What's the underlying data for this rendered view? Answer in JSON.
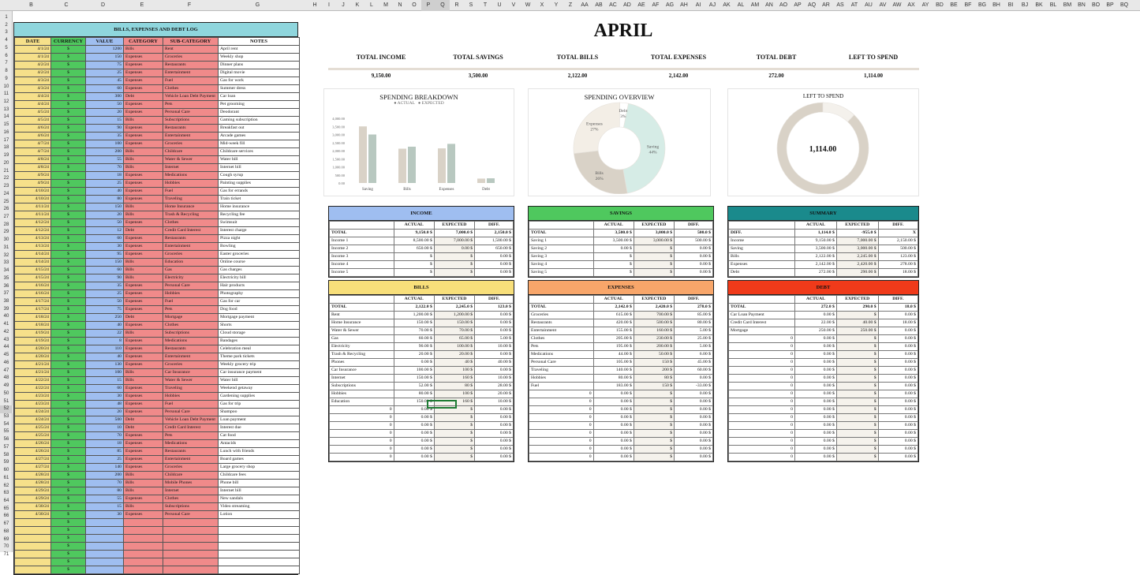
{
  "colheads": [
    "B",
    "C",
    "D",
    "E",
    "F",
    "G",
    "H",
    "I",
    "J",
    "K",
    "L",
    "M",
    "N",
    "O",
    "P",
    "Q",
    "R",
    "S",
    "T",
    "U",
    "V",
    "W",
    "X",
    "Y",
    "Z",
    "AA",
    "AB",
    "AC",
    "AD",
    "AE",
    "AF",
    "AG",
    "AH",
    "AI",
    "AJ",
    "AK",
    "AL",
    "AM",
    "AN",
    "AO",
    "AP",
    "AQ",
    "AR",
    "AS",
    "AT",
    "AU",
    "AV",
    "AW",
    "AX",
    "AY",
    "BD",
    "BE",
    "BF",
    "BG",
    "BH",
    "BI",
    "BJ",
    "BK",
    "BL",
    "BM",
    "BN",
    "BO",
    "BP",
    "BQ",
    "BR",
    "BS",
    "BT",
    "BU"
  ],
  "rowheads": [
    "1",
    "2",
    "3",
    "4",
    "5",
    "6",
    "7",
    "8",
    "9",
    "10",
    "11",
    "12",
    "13",
    "14",
    "15",
    "16",
    "17",
    "18",
    "19",
    "20",
    "21",
    "22",
    "23",
    "24",
    "25",
    "26",
    "27",
    "28",
    "29",
    "30",
    "31",
    "32",
    "33",
    "34",
    "35",
    "36",
    "37",
    "38",
    "39",
    "40",
    "41",
    "42",
    "43",
    "44",
    "45",
    "46",
    "47",
    "48",
    "49",
    "50",
    "51",
    "52",
    "53",
    "54",
    "55",
    "56",
    "57",
    "58",
    "59",
    "60",
    "61",
    "62",
    "63",
    "64",
    "65",
    "66",
    "67",
    "68",
    "69",
    "70",
    "71"
  ],
  "log": {
    "title": "BILLS, EXPENSES AND DEBT LOG",
    "headers": [
      "DATE",
      "CURRENCY",
      "VALUE",
      "CATEGORY",
      "SUB-CATEGORY",
      "NOTES"
    ],
    "rows": [
      [
        "4/1/24",
        "$",
        "1200",
        "Bills",
        "Rent",
        "April rent"
      ],
      [
        "4/1/24",
        "$",
        "150",
        "Expenses",
        "Groceries",
        "Weekly shop"
      ],
      [
        "4/2/24",
        "$",
        "75",
        "Expenses",
        "Restaurants",
        "Dinner plans"
      ],
      [
        "4/2/24",
        "$",
        "25",
        "Expenses",
        "Entertainment",
        "Digital movie"
      ],
      [
        "4/3/24",
        "$",
        "45",
        "Expenses",
        "Fuel",
        "Gas for work"
      ],
      [
        "4/3/24",
        "$",
        "60",
        "Expenses",
        "Clothes",
        "Summer dress"
      ],
      [
        "4/4/24",
        "$",
        "300",
        "Debt",
        "Vehicle Loan Debt Payment",
        "Car loan"
      ],
      [
        "4/4/24",
        "$",
        "50",
        "Expenses",
        "Pets",
        "Pet grooming"
      ],
      [
        "4/5/24",
        "$",
        "20",
        "Expenses",
        "Personal Care",
        "Deodorant"
      ],
      [
        "4/5/24",
        "$",
        "15",
        "Bills",
        "Subscriptions",
        "Gaming subscription"
      ],
      [
        "4/6/24",
        "$",
        "90",
        "Expenses",
        "Restaurants",
        "Breakfast out"
      ],
      [
        "4/6/24",
        "$",
        "35",
        "Expenses",
        "Entertainment",
        "Arcade games"
      ],
      [
        "4/7/24",
        "$",
        "100",
        "Expenses",
        "Groceries",
        "Mid-week fill"
      ],
      [
        "4/7/24",
        "$",
        "200",
        "Bills",
        "Childcare",
        "Childcare services"
      ],
      [
        "4/8/24",
        "$",
        "55",
        "Bills",
        "Water & Sewer",
        "Water bill"
      ],
      [
        "4/8/24",
        "$",
        "70",
        "Bills",
        "Internet",
        "Internet bill"
      ],
      [
        "4/9/24",
        "$",
        "18",
        "Expenses",
        "Medications",
        "Cough syrup"
      ],
      [
        "4/9/24",
        "$",
        "25",
        "Expenses",
        "Hobbies",
        "Painting supplies"
      ],
      [
        "4/10/24",
        "$",
        "40",
        "Expenses",
        "Fuel",
        "Gas for errands"
      ],
      [
        "4/10/24",
        "$",
        "80",
        "Expenses",
        "Traveling",
        "Train ticket"
      ],
      [
        "4/11/24",
        "$",
        "150",
        "Bills",
        "Home Insurance",
        "Home insurance"
      ],
      [
        "4/11/24",
        "$",
        "20",
        "Bills",
        "Trash & Recycling",
        "Recycling fee"
      ],
      [
        "4/12/24",
        "$",
        "50",
        "Expenses",
        "Clothes",
        "Swimsuit"
      ],
      [
        "4/12/24",
        "$",
        "12",
        "Debt",
        "Credit Card Interest",
        "Interest charge"
      ],
      [
        "4/13/24",
        "$",
        "60",
        "Expenses",
        "Restaurants",
        "Pizza night"
      ],
      [
        "4/13/24",
        "$",
        "30",
        "Expenses",
        "Entertainment",
        "Bowling"
      ],
      [
        "4/14/24",
        "$",
        "95",
        "Expenses",
        "Groceries",
        "Easter groceries"
      ],
      [
        "4/14/24",
        "$",
        "150",
        "Bills",
        "Education",
        "Online course"
      ],
      [
        "4/15/24",
        "$",
        "60",
        "Bills",
        "Gas",
        "Gas charges"
      ],
      [
        "4/15/24",
        "$",
        "90",
        "Bills",
        "Electricity",
        "Electricity bill"
      ],
      [
        "4/16/24",
        "$",
        "35",
        "Expenses",
        "Personal Care",
        "Hair products"
      ],
      [
        "4/16/24",
        "$",
        "25",
        "Expenses",
        "Hobbies",
        "Photography"
      ],
      [
        "4/17/24",
        "$",
        "50",
        "Expenses",
        "Fuel",
        "Gas for car"
      ],
      [
        "4/17/24",
        "$",
        "75",
        "Expenses",
        "Pets",
        "Dog food"
      ],
      [
        "4/18/24",
        "$",
        "250",
        "Debt",
        "Mortgage",
        "Mortgage payment"
      ],
      [
        "4/18/24",
        "$",
        "40",
        "Expenses",
        "Clothes",
        "Shorts"
      ],
      [
        "4/19/24",
        "$",
        "22",
        "Bills",
        "Subscriptions",
        "Cloud storage"
      ],
      [
        "4/19/24",
        "$",
        "8",
        "Expenses",
        "Medications",
        "Bandages"
      ],
      [
        "4/20/24",
        "$",
        "110",
        "Expenses",
        "Restaurants",
        "Celebration meal"
      ],
      [
        "4/20/24",
        "$",
        "40",
        "Expenses",
        "Entertainment",
        "Theme park tickets"
      ],
      [
        "4/21/24",
        "$",
        "130",
        "Expenses",
        "Groceries",
        "Weekly grocery trip"
      ],
      [
        "4/21/24",
        "$",
        "100",
        "Bills",
        "Car Insurance",
        "Car insurance payment"
      ],
      [
        "4/22/24",
        "$",
        "15",
        "Bills",
        "Water & Sewer",
        "Water bill"
      ],
      [
        "4/22/24",
        "$",
        "60",
        "Expenses",
        "Traveling",
        "Weekend getaway"
      ],
      [
        "4/23/24",
        "$",
        "30",
        "Expenses",
        "Hobbies",
        "Gardening supplies"
      ],
      [
        "4/23/24",
        "$",
        "48",
        "Expenses",
        "Fuel",
        "Gas for trip"
      ],
      [
        "4/24/24",
        "$",
        "20",
        "Expenses",
        "Personal Care",
        "Shampoo"
      ],
      [
        "4/24/24",
        "$",
        "500",
        "Debt",
        "Vehicle Loan Debt Payment",
        "Loan payment"
      ],
      [
        "4/25/24",
        "$",
        "10",
        "Debt",
        "Credit Card Interest",
        "Interest due"
      ],
      [
        "4/25/24",
        "$",
        "70",
        "Expenses",
        "Pets",
        "Cat food"
      ],
      [
        "4/26/24",
        "$",
        "18",
        "Expenses",
        "Medications",
        "Antacids"
      ],
      [
        "4/26/24",
        "$",
        "85",
        "Expenses",
        "Restaurants",
        "Lunch with friends"
      ],
      [
        "4/27/24",
        "$",
        "25",
        "Expenses",
        "Entertainment",
        "Board games"
      ],
      [
        "4/27/24",
        "$",
        "140",
        "Expenses",
        "Groceries",
        "Large grocery shop"
      ],
      [
        "4/28/24",
        "$",
        "200",
        "Bills",
        "Childcare",
        "Childcare fees"
      ],
      [
        "4/28/24",
        "$",
        "70",
        "Bills",
        "Mobile Phones",
        "Phone bill"
      ],
      [
        "4/29/24",
        "$",
        "80",
        "Bills",
        "Internet",
        "Internet bill"
      ],
      [
        "4/29/24",
        "$",
        "55",
        "Expenses",
        "Clothes",
        "New sandals"
      ],
      [
        "4/30/24",
        "$",
        "15",
        "Bills",
        "Subscriptions",
        "Video streaming"
      ],
      [
        "4/30/24",
        "$",
        "30",
        "Expenses",
        "Personal Care",
        "Lotion"
      ],
      [
        "",
        "$",
        "",
        "",
        "",
        ""
      ],
      [
        "",
        "$",
        "",
        "",
        "",
        ""
      ],
      [
        "",
        "$",
        "",
        "",
        "",
        ""
      ],
      [
        "",
        "$",
        "",
        "",
        "",
        ""
      ],
      [
        "",
        "$",
        "",
        "",
        "",
        ""
      ],
      [
        "",
        "$",
        "",
        "",
        "",
        ""
      ],
      [
        "",
        "$",
        "",
        "",
        "",
        ""
      ]
    ]
  },
  "month": "APRIL",
  "kpis": [
    {
      "label": "TOTAL INCOME",
      "value": "9,150.00"
    },
    {
      "label": "TOTAL SAVINGS",
      "value": "3,500.00"
    },
    {
      "label": "TOTAL BILLS",
      "value": "2,122.00"
    },
    {
      "label": "TOTAL EXPENSES",
      "value": "2,142.00"
    },
    {
      "label": "TOTAL DEBT",
      "value": "272.00"
    },
    {
      "label": "LEFT TO SPEND",
      "value": "1,114.00"
    }
  ],
  "chart_data": [
    {
      "type": "bar",
      "title": "SPENDING BREAKDOWN",
      "categories": [
        "Saving",
        "Bills",
        "Expenses",
        "Debt"
      ],
      "series": [
        {
          "name": "ACTUAL",
          "values": [
            3500,
            2122,
            2142,
            272
          ],
          "color": "#d9d2c7"
        },
        {
          "name": "EXPECTED",
          "values": [
            3000,
            2245,
            2420,
            290
          ],
          "color": "#b8c8c0"
        }
      ],
      "ylim": [
        0,
        4000
      ],
      "yticks": [
        "0.00",
        "500.00",
        "1,000.00",
        "1,500.00",
        "2,000.00",
        "2,500.00",
        "3,000.00",
        "3,500.00",
        "4,000.00"
      ],
      "legend": "top"
    },
    {
      "type": "pie",
      "title": "SPENDING OVERVIEW",
      "slices": [
        {
          "label": "Saving",
          "pct": "44%",
          "value": 44,
          "color": "#d6ece6"
        },
        {
          "label": "Bills",
          "pct": "26%",
          "value": 26,
          "color": "#d9d2c7"
        },
        {
          "label": "Expenses",
          "pct": "27%",
          "value": 27,
          "color": "#f3eee6"
        },
        {
          "label": "Debt",
          "pct": "3%",
          "value": 3,
          "color": "#ffffff"
        }
      ]
    },
    {
      "type": "pie",
      "title": "LEFT TO SPEND",
      "center": "1,114.00",
      "slices": [
        {
          "value": 88,
          "color": "#d9d2c7"
        },
        {
          "value": 12,
          "color": "#f4f1ec"
        }
      ]
    }
  ],
  "income": {
    "title": "INCOME",
    "color": "#9fbef0",
    "headers": [
      "",
      "ACTUAL",
      "EXPECTED",
      "DIFF."
    ],
    "total": [
      "TOTAL",
      "9,150.0 $",
      "7,000.0 $",
      "2,150.0 $"
    ],
    "rows": [
      [
        "Income 1",
        "8,500.00 $",
        "7,000.00 $",
        "1,500.00 $"
      ],
      [
        "Income 2",
        "650.00 $",
        "0.00 $",
        "650.00 $"
      ],
      [
        "Income 3",
        "$",
        "$",
        "0.00 $"
      ],
      [
        "Income 4",
        "$",
        "$",
        "0.00 $"
      ],
      [
        "Income 5",
        "$",
        "$",
        "0.00 $"
      ]
    ]
  },
  "savings": {
    "title": "SAVINGS",
    "color": "#4fc85e",
    "headers": [
      "",
      "ACTUAL",
      "EXPECTED",
      "DIFF."
    ],
    "total": [
      "TOTAL",
      "3,500.0 $",
      "3,000.0 $",
      "500.0 $"
    ],
    "rows": [
      [
        "Saving 1",
        "3,500.00 $",
        "3,000.00 $",
        "500.00 $"
      ],
      [
        "Saving 2",
        "0.00 $",
        "$",
        "0.00 $"
      ],
      [
        "Saving 3",
        "$",
        "$",
        "0.00 $"
      ],
      [
        "Saving 4",
        "$",
        "$",
        "0.00 $"
      ],
      [
        "Saving 5",
        "$",
        "$",
        "0.00 $"
      ]
    ]
  },
  "summary": {
    "title": "SUMMARY",
    "color": "#1a8a8c",
    "headers": [
      "",
      "ACTUAL",
      "EXPECTED",
      "DIFF."
    ],
    "total": [
      "DIFF.",
      "1,114.0 $",
      "-955.0 $",
      "X"
    ],
    "rows": [
      [
        "Income",
        "9,150.00 $",
        "7,000.00 $",
        "2,150.00 $"
      ],
      [
        "Saving",
        "3,500.00 $",
        "3,000.00 $",
        "500.00 $"
      ],
      [
        "Bills",
        "2,122.00 $",
        "2,245.00 $",
        "123.00 $"
      ],
      [
        "Expenses",
        "2,142.00 $",
        "2,420.00 $",
        "278.00 $"
      ],
      [
        "Debt",
        "272.00 $",
        "290.00 $",
        "18.00 $"
      ]
    ]
  },
  "bills": {
    "title": "BILLS",
    "color": "#f8df7a",
    "headers": [
      "",
      "ACTUAL",
      "EXPECTED",
      "DIFF."
    ],
    "total": [
      "TOTAL",
      "2,122.0 $",
      "2,245.0 $",
      "123.0 $"
    ],
    "rows": [
      [
        "Rent",
        "1,200.00 $",
        "1,200.00 $",
        "0.00 $"
      ],
      [
        "Home Insurance",
        "150.00 $",
        "150.00 $",
        "0.00 $"
      ],
      [
        "Water & Sewer",
        "70.00 $",
        "70.00 $",
        "0.00 $"
      ],
      [
        "Gas",
        "60.00 $",
        "65.00 $",
        "5.00 $"
      ],
      [
        "Electricity",
        "90.00 $",
        "100.00 $",
        "10.00 $"
      ],
      [
        "Trash & Recycling",
        "20.00 $",
        "20.00 $",
        "0.00 $"
      ],
      [
        "Phones",
        "0.00 $",
        "40 $",
        "40.00 $"
      ],
      [
        "Car Insurance",
        "100.00 $",
        "100 $",
        "0.00 $"
      ],
      [
        "Internet",
        "150.00 $",
        "160 $",
        "10.00 $"
      ],
      [
        "Subscriptions",
        "52.00 $",
        "80 $",
        "28.00 $"
      ],
      [
        "Hobbies",
        "80.00 $",
        "100 $",
        "20.00 $"
      ],
      [
        "Education",
        "150.00 $",
        "160 $",
        "10.00 $"
      ],
      [
        "0",
        "0.00 $",
        "$",
        "0.00 $"
      ],
      [
        "0",
        "0.00 $",
        "$",
        "0.00 $"
      ],
      [
        "0",
        "0.00 $",
        "$",
        "0.00 $"
      ],
      [
        "0",
        "0.00 $",
        "$",
        "0.00 $"
      ],
      [
        "0",
        "0.00 $",
        "$",
        "0.00 $"
      ],
      [
        "0",
        "0.00 $",
        "$",
        "0.00 $"
      ],
      [
        "0",
        "0.00 $",
        "$",
        "0.00 $"
      ]
    ]
  },
  "expenses": {
    "title": "EXPENSES",
    "color": "#f8a66a",
    "headers": [
      "",
      "ACTUAL",
      "EXPECTED",
      "DIFF."
    ],
    "total": [
      "TOTAL",
      "2,142.0 $",
      "2,420.0 $",
      "278.0 $"
    ],
    "rows": [
      [
        "Groceries",
        "615.00 $",
        "700.00 $",
        "85.00 $"
      ],
      [
        "Restaurants",
        "420.00 $",
        "500.00 $",
        "80.00 $"
      ],
      [
        "Entertainment",
        "155.00 $",
        "160.00 $",
        "5.00 $"
      ],
      [
        "Clothes",
        "205.00 $",
        "230.00 $",
        "25.00 $"
      ],
      [
        "Pets",
        "195.00 $",
        "200.00 $",
        "5.00 $"
      ],
      [
        "Medications",
        "44.00 $",
        "50.00 $",
        "6.00 $"
      ],
      [
        "Personal Care",
        "105.00 $",
        "150 $",
        "45.00 $"
      ],
      [
        "Traveling",
        "140.00 $",
        "200 $",
        "60.00 $"
      ],
      [
        "Hobbies",
        "80.00 $",
        "80 $",
        "0.00 $"
      ],
      [
        "Fuel",
        "183.00 $",
        "150 $",
        "-33.00 $"
      ],
      [
        "0",
        "0.00 $",
        "$",
        "0.00 $"
      ],
      [
        "0",
        "0.00 $",
        "$",
        "0.00 $"
      ],
      [
        "0",
        "0.00 $",
        "$",
        "0.00 $"
      ],
      [
        "0",
        "0.00 $",
        "$",
        "0.00 $"
      ],
      [
        "0",
        "0.00 $",
        "$",
        "0.00 $"
      ],
      [
        "0",
        "0.00 $",
        "$",
        "0.00 $"
      ],
      [
        "0",
        "0.00 $",
        "$",
        "0.00 $"
      ],
      [
        "0",
        "0.00 $",
        "$",
        "0.00 $"
      ],
      [
        "0",
        "0.00 $",
        "$",
        "0.00 $"
      ]
    ]
  },
  "debt": {
    "title": "DEBT",
    "color": "#f03a1a",
    "headers": [
      "",
      "ACTUAL",
      "EXPECTED",
      "DIFF."
    ],
    "total": [
      "TOTAL",
      "272.0 $",
      "290.0 $",
      "18.0 $"
    ],
    "rows": [
      [
        "Car Loan Payment",
        "0.00 $",
        "$",
        "0.00 $"
      ],
      [
        "Credit Card Interest",
        "22.00 $",
        "40.00 $",
        "18.00 $"
      ],
      [
        "Mortgage",
        "250.00 $",
        "250.00 $",
        "0.00 $"
      ],
      [
        "0",
        "0.00 $",
        "$",
        "0.00 $"
      ],
      [
        "0",
        "0.00 $",
        "$",
        "0.00 $"
      ],
      [
        "0",
        "0.00 $",
        "$",
        "0.00 $"
      ],
      [
        "0",
        "0.00 $",
        "$",
        "0.00 $"
      ],
      [
        "0",
        "0.00 $",
        "$",
        "0.00 $"
      ],
      [
        "0",
        "0.00 $",
        "$",
        "0.00 $"
      ],
      [
        "0",
        "0.00 $",
        "$",
        "0.00 $"
      ],
      [
        "0",
        "0.00 $",
        "$",
        "0.00 $"
      ],
      [
        "0",
        "0.00 $",
        "$",
        "0.00 $"
      ],
      [
        "0",
        "0.00 $",
        "$",
        "0.00 $"
      ],
      [
        "0",
        "0.00 $",
        "$",
        "0.00 $"
      ],
      [
        "0",
        "0.00 $",
        "$",
        "0.00 $"
      ],
      [
        "0",
        "0.00 $",
        "$",
        "0.00 $"
      ],
      [
        "0",
        "0.00 $",
        "$",
        "0.00 $"
      ],
      [
        "0",
        "0.00 $",
        "$",
        "0.00 $"
      ],
      [
        "0",
        "0.00 $",
        "$",
        "0.00 $"
      ]
    ]
  }
}
